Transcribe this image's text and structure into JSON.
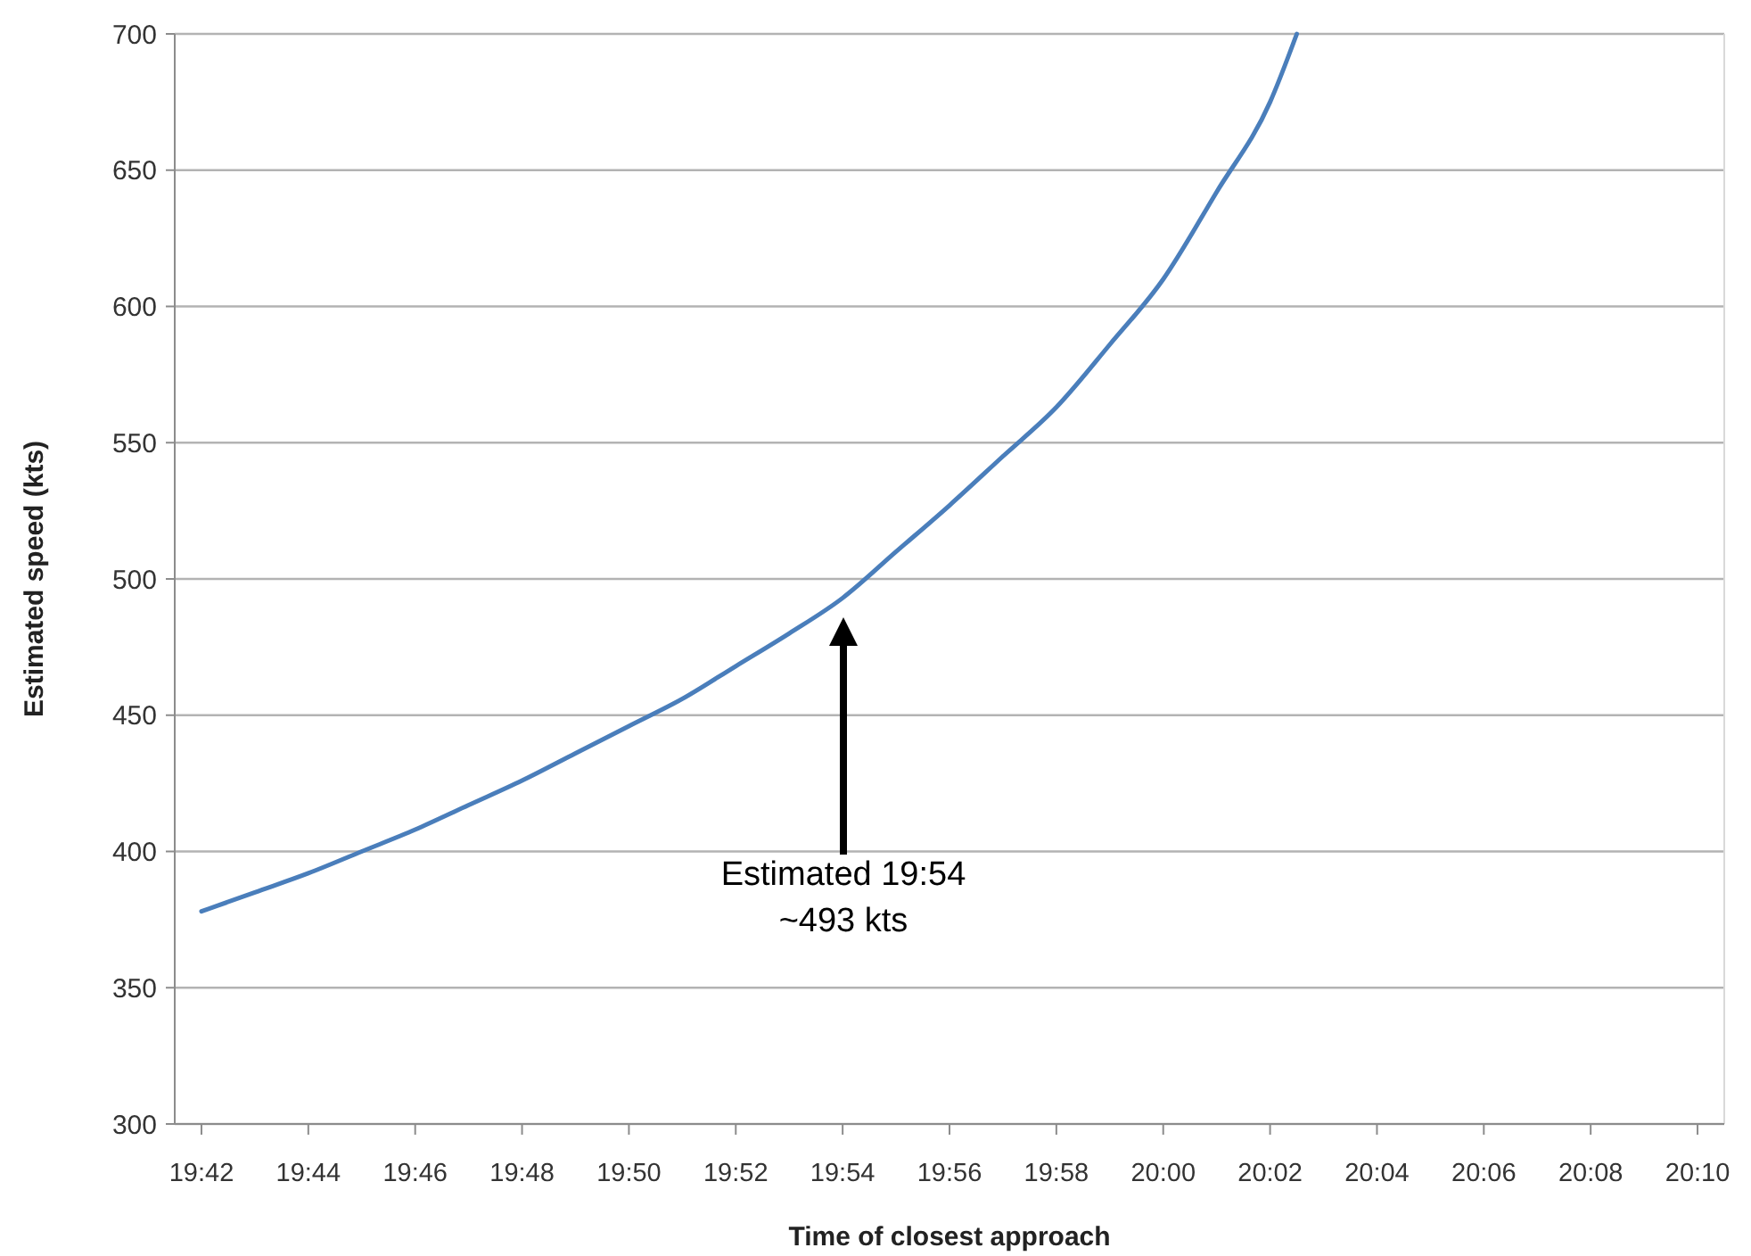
{
  "chart_data": {
    "type": "line",
    "xlabel": "Time of closest approach",
    "ylabel": "Estimated speed (kts)",
    "x": [
      19.7,
      19.716667,
      19.733333,
      19.75,
      19.766667,
      19.783333,
      19.8,
      19.816667,
      19.833333,
      19.85,
      19.866667,
      19.883333,
      19.9,
      19.916667,
      19.933333,
      19.95,
      19.966667,
      19.983333,
      20,
      20.016667,
      20.033333,
      20.041667
    ],
    "series": [
      {
        "color": "#4a7ebb",
        "values": [
          378,
          385,
          392,
          400,
          408,
          417,
          426,
          436,
          446,
          456,
          468,
          480,
          493,
          510,
          527,
          545,
          563,
          586,
          610,
          642,
          675,
          700
        ]
      }
    ],
    "xlim": [
      19.691667,
      20.175
    ],
    "xticks": [
      {
        "value": 19.7,
        "label": "19:42"
      },
      {
        "value": 19.733333,
        "label": "19:44"
      },
      {
        "value": 19.766667,
        "label": "19:46"
      },
      {
        "value": 19.8,
        "label": "19:48"
      },
      {
        "value": 19.833333,
        "label": "19:50"
      },
      {
        "value": 19.866667,
        "label": "19:52"
      },
      {
        "value": 19.9,
        "label": "19:54"
      },
      {
        "value": 19.933333,
        "label": "19:56"
      },
      {
        "value": 19.966667,
        "label": "19:58"
      },
      {
        "value": 20,
        "label": "20:00"
      },
      {
        "value": 20.033333,
        "label": "20:02"
      },
      {
        "value": 20.066667,
        "label": "20:04"
      },
      {
        "value": 20.1,
        "label": "20:06"
      },
      {
        "value": 20.133333,
        "label": "20:08"
      },
      {
        "value": 20.166667,
        "label": "20:10"
      }
    ],
    "ylim": [
      300,
      700
    ],
    "yticks": [
      300,
      350,
      400,
      450,
      500,
      550,
      600,
      650,
      700
    ],
    "grid": "y",
    "marker": "none",
    "line_style": "solid",
    "annotations": [
      "Estimated 19:54\n~493 kts"
    ]
  }
}
